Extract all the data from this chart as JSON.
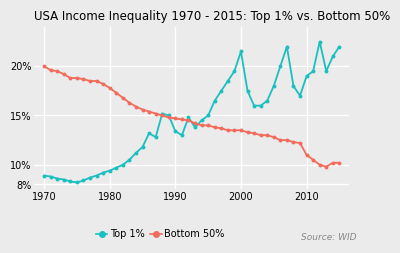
{
  "title": "USA Income Inequality 1970 - 2015: Top 1% vs. Bottom 50%",
  "source": "Source: WID",
  "top1_years": [
    1970,
    1971,
    1972,
    1973,
    1974,
    1975,
    1976,
    1977,
    1978,
    1979,
    1980,
    1981,
    1982,
    1983,
    1984,
    1985,
    1986,
    1987,
    1988,
    1989,
    1990,
    1991,
    1992,
    1993,
    1994,
    1995,
    1996,
    1997,
    1998,
    1999,
    2000,
    2001,
    2002,
    2003,
    2004,
    2005,
    2006,
    2007,
    2008,
    2009,
    2010,
    2011,
    2012,
    2013,
    2014,
    2015
  ],
  "top1_values": [
    8.9,
    8.8,
    8.6,
    8.5,
    8.3,
    8.2,
    8.4,
    8.7,
    8.9,
    9.2,
    9.4,
    9.7,
    10.0,
    10.5,
    11.2,
    11.8,
    13.2,
    12.8,
    15.2,
    15.0,
    13.4,
    13.0,
    14.8,
    13.8,
    14.5,
    15.0,
    16.5,
    17.5,
    18.5,
    19.5,
    21.5,
    17.5,
    16.0,
    16.0,
    16.5,
    18.0,
    20.0,
    22.0,
    18.0,
    17.0,
    19.0,
    19.5,
    22.5,
    19.5,
    21.0,
    22.0
  ],
  "bottom50_years": [
    1970,
    1971,
    1972,
    1973,
    1974,
    1975,
    1976,
    1977,
    1978,
    1979,
    1980,
    1981,
    1982,
    1983,
    1984,
    1985,
    1986,
    1987,
    1988,
    1989,
    1990,
    1991,
    1992,
    1993,
    1994,
    1995,
    1996,
    1997,
    1998,
    1999,
    2000,
    2001,
    2002,
    2003,
    2004,
    2005,
    2006,
    2007,
    2008,
    2009,
    2010,
    2011,
    2012,
    2013,
    2014,
    2015
  ],
  "bottom50_values": [
    20.0,
    19.6,
    19.5,
    19.2,
    18.8,
    18.8,
    18.7,
    18.5,
    18.5,
    18.2,
    17.8,
    17.3,
    16.8,
    16.3,
    15.9,
    15.6,
    15.4,
    15.2,
    15.0,
    14.8,
    14.7,
    14.6,
    14.5,
    14.2,
    14.0,
    14.0,
    13.8,
    13.7,
    13.5,
    13.5,
    13.5,
    13.3,
    13.2,
    13.0,
    13.0,
    12.8,
    12.5,
    12.5,
    12.3,
    12.2,
    11.0,
    10.5,
    10.0,
    9.8,
    10.2,
    10.2
  ],
  "top1_color": "#1ABFBF",
  "bottom50_color": "#F26B5B",
  "background_color": "#EBEBEB",
  "grid_color": "#ffffff",
  "ylim": [
    7.5,
    24.0
  ],
  "xlim": [
    1968.5,
    2016.5
  ],
  "yticks": [
    8,
    10,
    15,
    20
  ],
  "xticks": [
    1970,
    1980,
    1990,
    2000,
    2010
  ],
  "title_fontsize": 8.5,
  "tick_fontsize": 7,
  "legend_fontsize": 7,
  "source_fontsize": 6.5,
  "marker_size": 2.8,
  "line_width": 1.3
}
